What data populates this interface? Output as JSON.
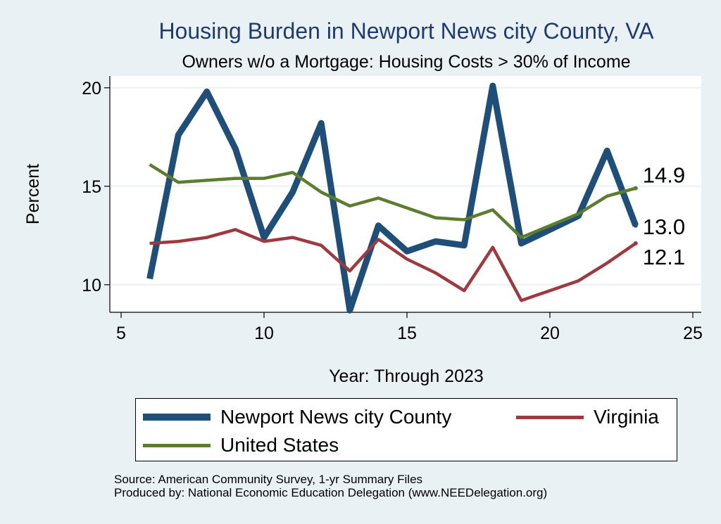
{
  "chart_data": {
    "type": "line",
    "title": "Housing Burden in Newport News city County, VA",
    "subtitle": "Owners w/o a Mortgage: Housing Costs > 30% of Income",
    "xlabel": "Year: Through 2023",
    "ylabel": "Percent",
    "xlim": [
      5,
      25
    ],
    "ylim": [
      8.6,
      20.6
    ],
    "xticks": [
      5,
      10,
      15,
      20,
      25
    ],
    "yticks": [
      10,
      15,
      20
    ],
    "grid": true,
    "legend_placement": "bottom",
    "series": [
      {
        "name": "Newport News city County",
        "color": "#1f4e79",
        "x": [
          6,
          7,
          8,
          9,
          10,
          11,
          12,
          13,
          14,
          15,
          16,
          17,
          18,
          19,
          20,
          21,
          22,
          23
        ],
        "y": [
          10.3,
          17.6,
          19.8,
          16.9,
          12.4,
          14.7,
          18.2,
          8.7,
          13.0,
          11.7,
          12.2,
          12.0,
          20.1,
          12.1,
          12.8,
          13.5,
          16.8,
          13.0
        ]
      },
      {
        "name": "Virginia",
        "color": "#9e3a3f",
        "x": [
          6,
          7,
          8,
          9,
          10,
          11,
          12,
          13,
          14,
          15,
          16,
          17,
          18,
          19,
          20,
          21,
          22,
          23
        ],
        "y": [
          12.1,
          12.2,
          12.4,
          12.8,
          12.2,
          12.4,
          12.0,
          10.7,
          12.3,
          11.3,
          10.6,
          9.7,
          11.9,
          9.2,
          9.7,
          10.2,
          11.1,
          12.1
        ]
      },
      {
        "name": "United States",
        "color": "#5c7d2e",
        "x": [
          6,
          7,
          8,
          9,
          10,
          11,
          12,
          13,
          14,
          15,
          16,
          17,
          18,
          19,
          20,
          21,
          22,
          23
        ],
        "y": [
          16.1,
          15.2,
          15.3,
          15.4,
          15.4,
          15.7,
          14.7,
          14.0,
          14.4,
          13.9,
          13.4,
          13.3,
          13.8,
          12.4,
          13.0,
          13.6,
          14.5,
          14.9
        ]
      }
    ],
    "end_labels": [
      {
        "series": "United States",
        "text": "14.9"
      },
      {
        "series": "Newport News city County",
        "text": "13.0"
      },
      {
        "series": "Virginia",
        "text": "12.1"
      }
    ]
  },
  "legend": {
    "items": [
      {
        "label": "Newport News city County",
        "color": "#1f4e79"
      },
      {
        "label": "Virginia",
        "color": "#9e3a3f"
      },
      {
        "label": "United States",
        "color": "#5c7d2e"
      }
    ]
  },
  "footer": {
    "source": "Source: American Community Survey, 1-yr Summary Files",
    "produced": "Produced by: National Economic Education Delegation (www.NEEDelegation.org)"
  }
}
